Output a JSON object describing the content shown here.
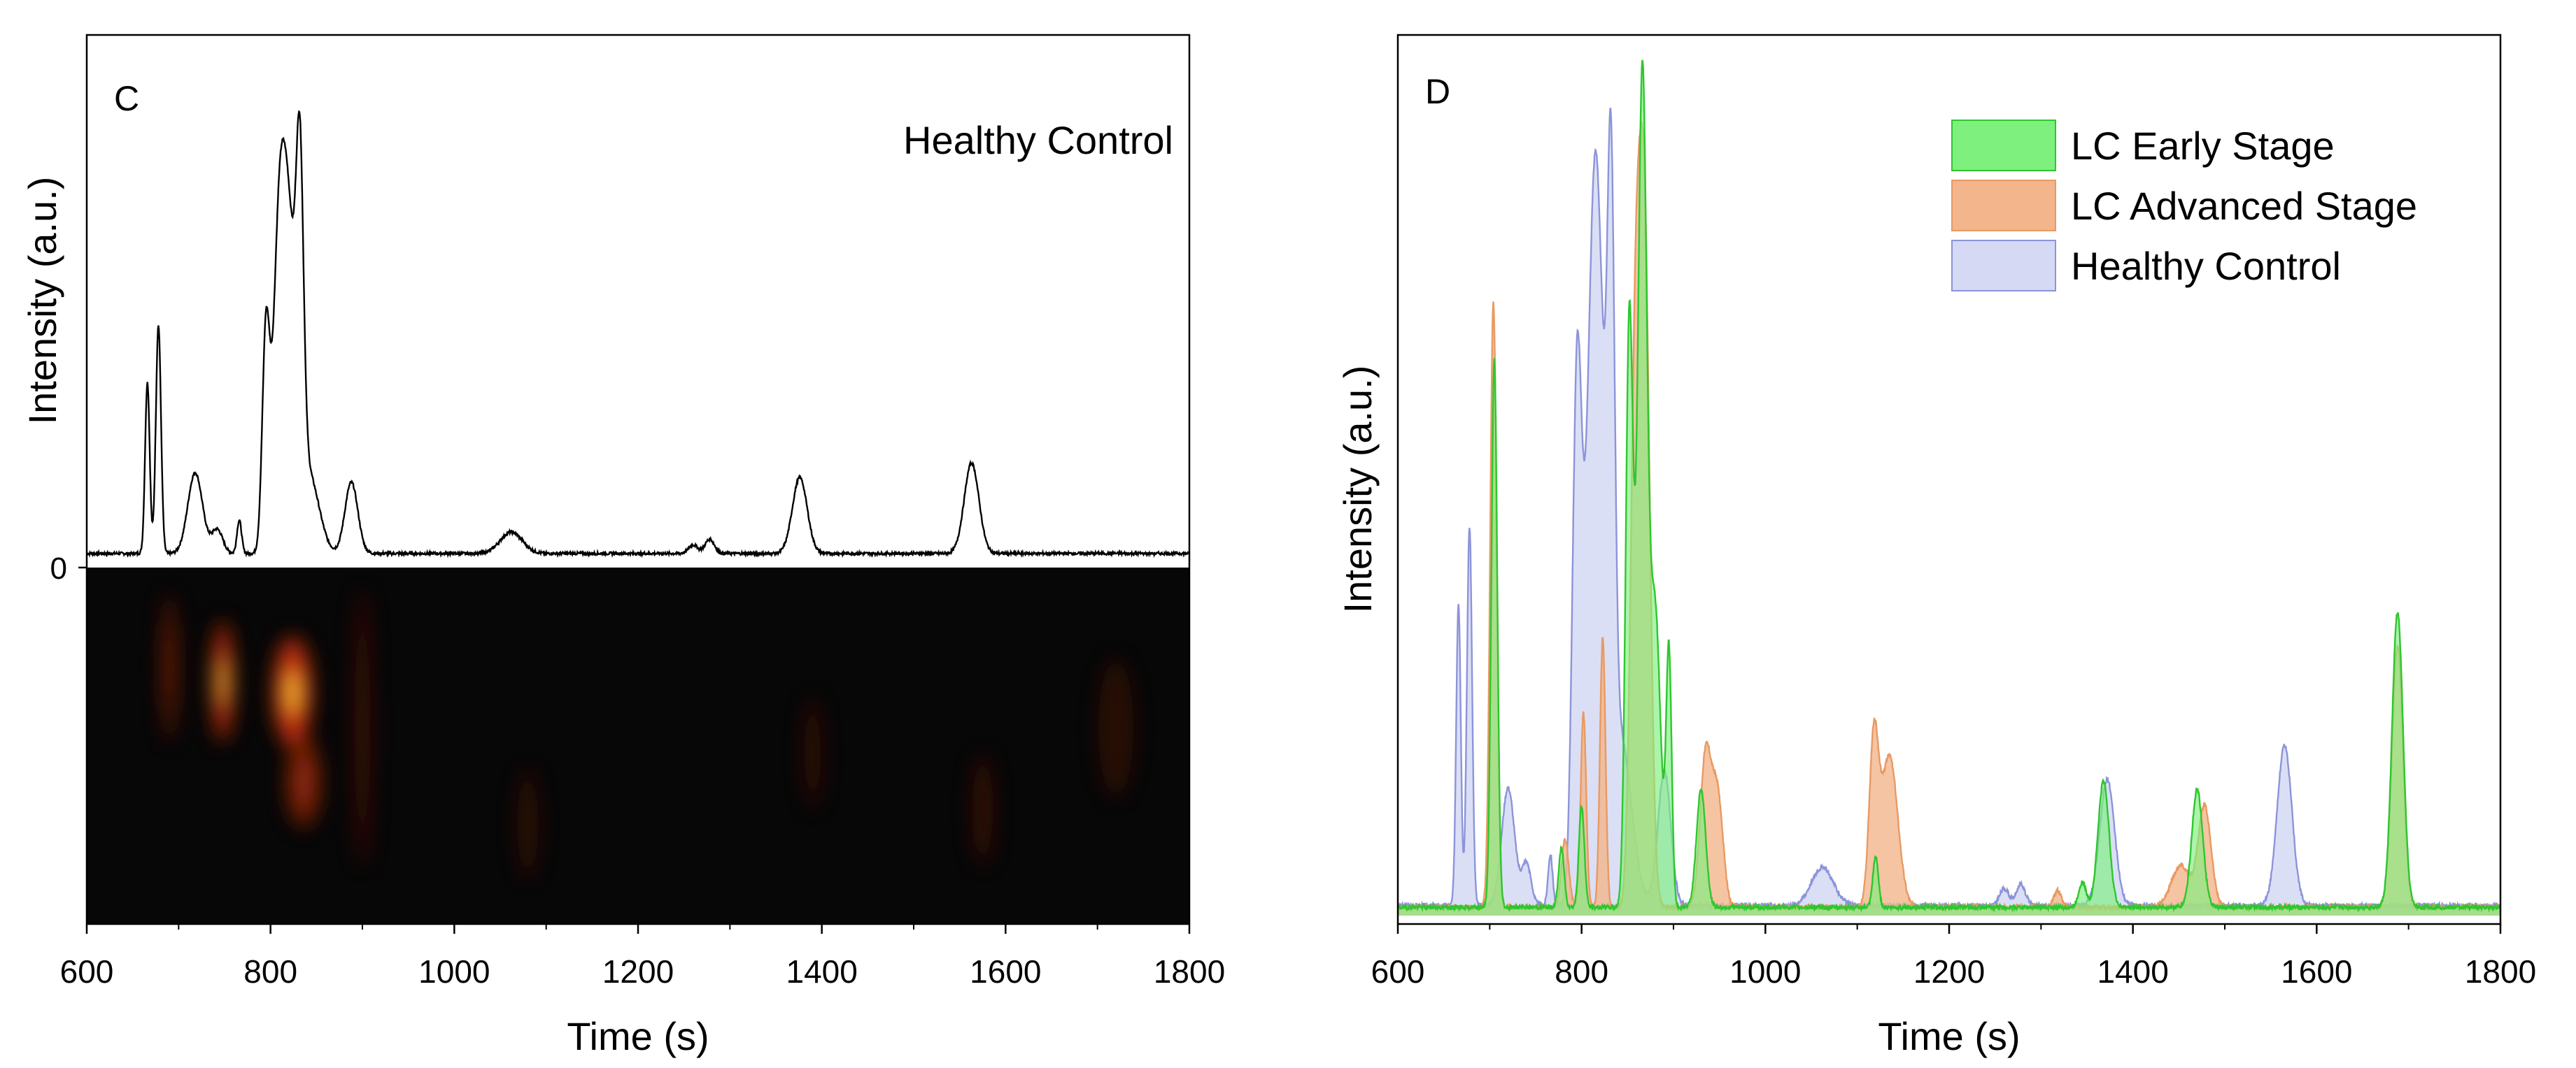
{
  "panels": [
    {
      "label": "C",
      "annotation": "Healthy Control",
      "xlabel": "Time (s)",
      "ylabel": "Intensity (a.u.)",
      "y_zero_label": "0"
    },
    {
      "label": "D",
      "xlabel": "Time (s)",
      "ylabel": "Intensity (a.u.)"
    }
  ],
  "colors": {
    "axis": "#000000",
    "early_fill": "#7ef07e",
    "early_line": "#2fc62f",
    "advanced_fill": "#f2b58c",
    "advanced_line": "#e89a62",
    "control_fill": "#d5d9f3",
    "control_line": "#8c94d9",
    "heatmap_bg": "#070707"
  },
  "chart_data": [
    {
      "type": "line",
      "panel": "C",
      "title": "Healthy Control",
      "xlabel": "Time (s)",
      "ylabel": "Intensity (a.u.)",
      "xlim": [
        600,
        1800
      ],
      "ylim": [
        0,
        1.0
      ],
      "xticks": [
        600,
        800,
        1000,
        1200,
        1400,
        1600,
        1800
      ],
      "yticks": [
        0
      ],
      "baseline": 0.012,
      "series": [
        {
          "name": "Healthy Control",
          "peaks": [
            {
              "t": 666,
              "h": 0.36,
              "w": 2.5
            },
            {
              "t": 678,
              "h": 0.48,
              "w": 2.8
            },
            {
              "t": 718,
              "h": 0.17,
              "w": 8
            },
            {
              "t": 742,
              "h": 0.05,
              "w": 6
            },
            {
              "t": 766,
              "h": 0.07,
              "w": 2.5
            },
            {
              "t": 795,
              "h": 0.45,
              "w": 4
            },
            {
              "t": 808,
              "h": 0.35,
              "w": 6
            },
            {
              "t": 818,
              "h": 0.72,
              "w": 9
            },
            {
              "t": 832,
              "h": 0.6,
              "w": 4
            },
            {
              "t": 842,
              "h": 0.16,
              "w": 11
            },
            {
              "t": 888,
              "h": 0.15,
              "w": 7
            },
            {
              "t": 1062,
              "h": 0.045,
              "w": 12
            },
            {
              "t": 1260,
              "h": 0.018,
              "w": 5
            },
            {
              "t": 1278,
              "h": 0.03,
              "w": 5
            },
            {
              "t": 1376,
              "h": 0.16,
              "w": 8
            },
            {
              "t": 1563,
              "h": 0.19,
              "w": 8
            }
          ]
        }
      ]
    },
    {
      "type": "heatmap",
      "panel": "C",
      "xlim": [
        600,
        1800
      ],
      "ylim": [
        0,
        1.0
      ],
      "spots": [
        {
          "t": 690,
          "y": 0.72,
          "intensity": 0.45,
          "sx": 4,
          "sy": 0.16
        },
        {
          "t": 748,
          "y": 0.68,
          "intensity": 0.95,
          "sx": 6,
          "sy": 0.13
        },
        {
          "t": 824,
          "y": 0.65,
          "intensity": 1.0,
          "sx": 11,
          "sy": 0.12
        },
        {
          "t": 836,
          "y": 0.4,
          "intensity": 0.55,
          "sx": 10,
          "sy": 0.1
        },
        {
          "t": 900,
          "y": 0.55,
          "intensity": 0.2,
          "sx": 5,
          "sy": 0.3
        },
        {
          "t": 1080,
          "y": 0.28,
          "intensity": 0.08,
          "sx": 6,
          "sy": 0.12
        },
        {
          "t": 1390,
          "y": 0.48,
          "intensity": 0.12,
          "sx": 5,
          "sy": 0.12
        },
        {
          "t": 1575,
          "y": 0.32,
          "intensity": 0.14,
          "sx": 6,
          "sy": 0.12
        },
        {
          "t": 1720,
          "y": 0.55,
          "intensity": 0.05,
          "sx": 10,
          "sy": 0.15
        }
      ]
    },
    {
      "type": "area",
      "panel": "D",
      "xlabel": "Time (s)",
      "ylabel": "Intensity (a.u.)",
      "xlim": [
        600,
        1800
      ],
      "ylim": [
        0,
        1.0
      ],
      "xticks": [
        600,
        800,
        1000,
        1200,
        1400,
        1600,
        1800
      ],
      "legend": [
        "LC Early Stage",
        "LC Advanced Stage",
        "Healthy Control"
      ],
      "legend_position": "top-right",
      "series": [
        {
          "name": "Healthy Control",
          "baseline": 0.012,
          "peaks": [
            {
              "t": 666,
              "h": 0.36,
              "w": 2.5
            },
            {
              "t": 678,
              "h": 0.45,
              "w": 2.8
            },
            {
              "t": 720,
              "h": 0.14,
              "w": 7
            },
            {
              "t": 740,
              "h": 0.05,
              "w": 5
            },
            {
              "t": 766,
              "h": 0.06,
              "w": 2.5
            },
            {
              "t": 795,
              "h": 0.6,
              "w": 5
            },
            {
              "t": 815,
              "h": 0.88,
              "w": 9
            },
            {
              "t": 832,
              "h": 0.65,
              "w": 4
            },
            {
              "t": 842,
              "h": 0.2,
              "w": 12
            },
            {
              "t": 890,
              "h": 0.16,
              "w": 7
            },
            {
              "t": 1062,
              "h": 0.045,
              "w": 12
            },
            {
              "t": 1260,
              "h": 0.02,
              "w": 5
            },
            {
              "t": 1278,
              "h": 0.025,
              "w": 5
            },
            {
              "t": 1372,
              "h": 0.15,
              "w": 8
            },
            {
              "t": 1565,
              "h": 0.19,
              "w": 8
            }
          ]
        },
        {
          "name": "LC Advanced Stage",
          "baseline": 0.01,
          "peaks": [
            {
              "t": 704,
              "h": 0.72,
              "w": 3.5
            },
            {
              "t": 782,
              "h": 0.08,
              "w": 4
            },
            {
              "t": 802,
              "h": 0.23,
              "w": 3
            },
            {
              "t": 823,
              "h": 0.32,
              "w": 3
            },
            {
              "t": 858,
              "h": 0.55,
              "w": 5
            },
            {
              "t": 868,
              "h": 0.82,
              "w": 6
            },
            {
              "t": 935,
              "h": 0.18,
              "w": 6
            },
            {
              "t": 948,
              "h": 0.13,
              "w": 6
            },
            {
              "t": 1118,
              "h": 0.19,
              "w": 5
            },
            {
              "t": 1135,
              "h": 0.18,
              "w": 9
            },
            {
              "t": 1318,
              "h": 0.02,
              "w": 4
            },
            {
              "t": 1452,
              "h": 0.05,
              "w": 10
            },
            {
              "t": 1478,
              "h": 0.12,
              "w": 7
            },
            {
              "t": 1688,
              "h": 0.31,
              "w": 6
            }
          ]
        },
        {
          "name": "LC Early Stage",
          "baseline": 0.01,
          "peaks": [
            {
              "t": 705,
              "h": 0.65,
              "w": 3.2
            },
            {
              "t": 778,
              "h": 0.07,
              "w": 3
            },
            {
              "t": 800,
              "h": 0.12,
              "w": 3
            },
            {
              "t": 852,
              "h": 0.7,
              "w": 4
            },
            {
              "t": 866,
              "h": 0.98,
              "w": 5
            },
            {
              "t": 880,
              "h": 0.35,
              "w": 6
            },
            {
              "t": 895,
              "h": 0.3,
              "w": 3
            },
            {
              "t": 930,
              "h": 0.14,
              "w": 5
            },
            {
              "t": 1120,
              "h": 0.06,
              "w": 3
            },
            {
              "t": 1345,
              "h": 0.03,
              "w": 4
            },
            {
              "t": 1368,
              "h": 0.15,
              "w": 6
            },
            {
              "t": 1470,
              "h": 0.14,
              "w": 6
            },
            {
              "t": 1688,
              "h": 0.35,
              "w": 6
            }
          ]
        }
      ]
    }
  ]
}
